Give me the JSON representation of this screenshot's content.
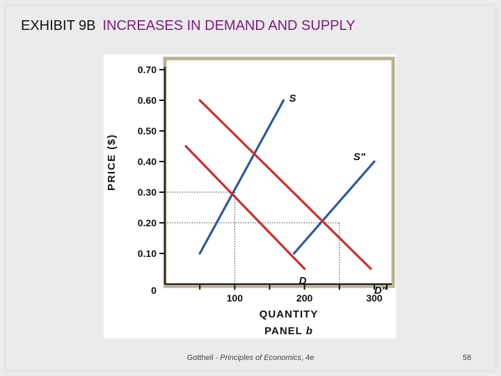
{
  "slide": {
    "title_prefix": "EXHIBIT 9B",
    "title_main": "INCREASES IN DEMAND AND SUPPLY",
    "footer_author": "Gottheil - ",
    "footer_book": "Principles of Economics",
    "footer_edition": ", 4e",
    "page_number": "58"
  },
  "colors": {
    "title_accent": "#7a1a7f",
    "demand": "#d42a26",
    "supply": "#2c57a0",
    "frame": "#b8b48c"
  },
  "chart_data": {
    "type": "line",
    "xlabel": "QUANTITY",
    "panel_label": "PANEL",
    "panel_letter": "b",
    "ylabel": "PRICE ($)",
    "xlim": [
      0,
      325
    ],
    "ylim": [
      0,
      0.7
    ],
    "x_ticks": [
      0,
      100,
      200,
      300
    ],
    "y_ticks": [
      0.1,
      0.2,
      0.3,
      0.4,
      0.5,
      0.6,
      0.7
    ],
    "x_tick_labels": [
      "100",
      "200",
      "300"
    ],
    "y_tick_labels": [
      "0.10",
      "0.20",
      "0.30",
      "0.40",
      "0.50",
      "0.60",
      "0.70"
    ],
    "origin_label": "0",
    "series": [
      {
        "name": "S",
        "kind": "supply",
        "x": [
          50,
          170
        ],
        "y": [
          0.1,
          0.6
        ]
      },
      {
        "name": "S\"",
        "kind": "supply",
        "x": [
          185,
          300
        ],
        "y": [
          0.1,
          0.4
        ]
      },
      {
        "name": "D",
        "kind": "demand",
        "x": [
          30,
          200
        ],
        "y": [
          0.45,
          0.05
        ]
      },
      {
        "name": "D\"",
        "kind": "demand",
        "x": [
          50,
          295
        ],
        "y": [
          0.6,
          0.05
        ]
      }
    ],
    "equilibria": [
      {
        "x": 100,
        "y": 0.3
      },
      {
        "x": 250,
        "y": 0.2
      }
    ]
  }
}
